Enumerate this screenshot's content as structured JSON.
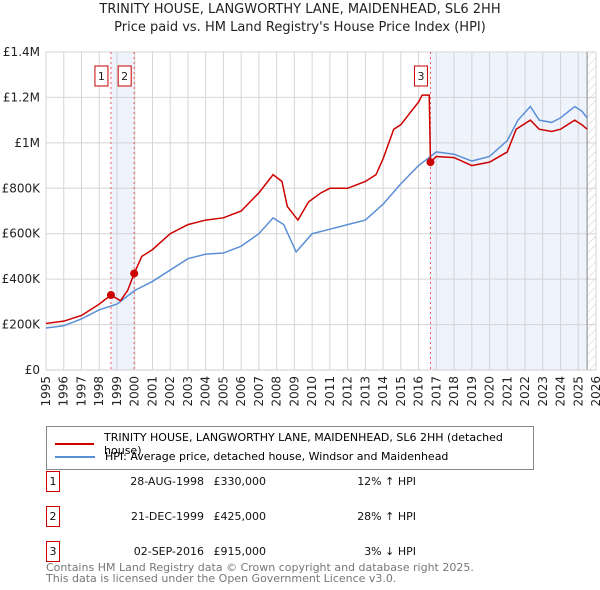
{
  "title": "TRINITY HOUSE, LANGWORTHY LANE, MAIDENHEAD, SL6 2HH",
  "subtitle": "Price paid vs. HM Land Registry's House Price Index (HPI)",
  "chart_data": {
    "type": "line",
    "xlim": [
      1995,
      2026
    ],
    "ylim": [
      0,
      1400000
    ],
    "yticks": [
      {
        "v": 0,
        "label": "£0"
      },
      {
        "v": 200000,
        "label": "£200K"
      },
      {
        "v": 400000,
        "label": "£400K"
      },
      {
        "v": 600000,
        "label": "£600K"
      },
      {
        "v": 800000,
        "label": "£800K"
      },
      {
        "v": 1000000,
        "label": "£1M"
      },
      {
        "v": 1200000,
        "label": "£1.2M"
      },
      {
        "v": 1400000,
        "label": "£1.4M"
      }
    ],
    "xticks": [
      "1995",
      "1996",
      "1997",
      "1998",
      "1999",
      "2000",
      "2001",
      "2002",
      "2003",
      "2004",
      "2005",
      "2006",
      "2007",
      "2008",
      "2009",
      "2010",
      "2011",
      "2012",
      "2013",
      "2014",
      "2015",
      "2016",
      "2017",
      "2018",
      "2019",
      "2020",
      "2021",
      "2022",
      "2023",
      "2024",
      "2025",
      "2026"
    ],
    "shaded": [
      [
        1998.66,
        1999.97
      ],
      [
        2016.67,
        2025.5
      ]
    ],
    "series": [
      {
        "name": "TRINITY HOUSE, LANGWORTHY LANE, MAIDENHEAD, SL6 2HH (detached house)",
        "color": "#cc0000",
        "points": [
          [
            1995,
            205000
          ],
          [
            1996,
            215000
          ],
          [
            1997,
            240000
          ],
          [
            1998,
            290000
          ],
          [
            1998.66,
            330000
          ],
          [
            1999.2,
            305000
          ],
          [
            1999.6,
            350000
          ],
          [
            1999.97,
            425000
          ],
          [
            2000.4,
            500000
          ],
          [
            2001,
            530000
          ],
          [
            2002,
            600000
          ],
          [
            2003,
            640000
          ],
          [
            2004,
            660000
          ],
          [
            2005,
            670000
          ],
          [
            2006,
            700000
          ],
          [
            2007,
            780000
          ],
          [
            2007.8,
            860000
          ],
          [
            2008.3,
            830000
          ],
          [
            2008.6,
            720000
          ],
          [
            2009.2,
            660000
          ],
          [
            2009.8,
            740000
          ],
          [
            2010.5,
            780000
          ],
          [
            2011,
            800000
          ],
          [
            2012,
            800000
          ],
          [
            2013,
            830000
          ],
          [
            2013.6,
            860000
          ],
          [
            2014,
            930000
          ],
          [
            2014.6,
            1060000
          ],
          [
            2015,
            1080000
          ],
          [
            2015.5,
            1130000
          ],
          [
            2016,
            1180000
          ],
          [
            2016.2,
            1210000
          ],
          [
            2016.6,
            1210000
          ],
          [
            2016.67,
            915000
          ],
          [
            2017,
            940000
          ],
          [
            2018,
            935000
          ],
          [
            2019,
            900000
          ],
          [
            2020,
            915000
          ],
          [
            2021,
            960000
          ],
          [
            2021.5,
            1060000
          ],
          [
            2022.3,
            1100000
          ],
          [
            2022.8,
            1060000
          ],
          [
            2023.5,
            1050000
          ],
          [
            2024,
            1060000
          ],
          [
            2024.8,
            1100000
          ],
          [
            2025.2,
            1080000
          ],
          [
            2025.5,
            1060000
          ]
        ]
      },
      {
        "name": "HPI: Average price, detached house, Windsor and Maidenhead",
        "color": "#5b8fd6",
        "points": [
          [
            1995,
            185000
          ],
          [
            1996,
            195000
          ],
          [
            1997,
            225000
          ],
          [
            1998,
            265000
          ],
          [
            1999,
            290000
          ],
          [
            2000,
            350000
          ],
          [
            2001,
            390000
          ],
          [
            2002,
            440000
          ],
          [
            2003,
            490000
          ],
          [
            2004,
            510000
          ],
          [
            2005,
            515000
          ],
          [
            2006,
            545000
          ],
          [
            2007,
            600000
          ],
          [
            2007.8,
            670000
          ],
          [
            2008.4,
            640000
          ],
          [
            2009.1,
            520000
          ],
          [
            2010,
            600000
          ],
          [
            2011,
            620000
          ],
          [
            2012,
            640000
          ],
          [
            2013,
            660000
          ],
          [
            2014,
            730000
          ],
          [
            2015,
            820000
          ],
          [
            2016,
            900000
          ],
          [
            2016.67,
            940000
          ],
          [
            2017,
            960000
          ],
          [
            2018,
            950000
          ],
          [
            2019,
            920000
          ],
          [
            2020,
            940000
          ],
          [
            2021,
            1010000
          ],
          [
            2021.6,
            1100000
          ],
          [
            2022.3,
            1160000
          ],
          [
            2022.8,
            1100000
          ],
          [
            2023.5,
            1090000
          ],
          [
            2024,
            1110000
          ],
          [
            2024.8,
            1160000
          ],
          [
            2025.2,
            1140000
          ],
          [
            2025.5,
            1110000
          ]
        ]
      }
    ],
    "sales": [
      {
        "n": "1",
        "x": 1998.66,
        "y": 330000
      },
      {
        "n": "2",
        "x": 1999.97,
        "y": 425000
      },
      {
        "n": "3",
        "x": 2016.67,
        "y": 915000
      }
    ]
  },
  "legend": [
    "TRINITY HOUSE, LANGWORTHY LANE, MAIDENHEAD, SL6 2HH (detached house)",
    "HPI: Average price, detached house, Windsor and Maidenhead"
  ],
  "table": [
    {
      "n": "1",
      "date": "28-AUG-1998",
      "price": "£330,000",
      "hpi": "12% ↑ HPI"
    },
    {
      "n": "2",
      "date": "21-DEC-1999",
      "price": "£425,000",
      "hpi": "28% ↑ HPI"
    },
    {
      "n": "3",
      "date": "02-SEP-2016",
      "price": "£915,000",
      "hpi": "3% ↓ HPI"
    }
  ],
  "footer": [
    "Contains HM Land Registry data © Crown copyright and database right 2025.",
    "This data is licensed under the Open Government Licence v3.0."
  ]
}
